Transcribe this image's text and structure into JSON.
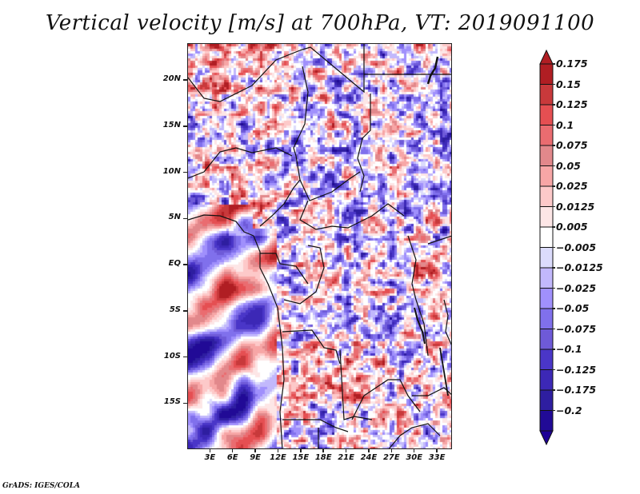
{
  "title": "Vertical velocity [m/s] at 700hPa, VT: 2019091100",
  "footer": "GrADS: IGES/COLA",
  "map": {
    "variable": "Vertical velocity",
    "units": "m/s",
    "level": "700hPa",
    "valid_time": "2019091100",
    "lon_range": [
      0,
      35
    ],
    "lat_range": [
      -20,
      24
    ],
    "lat_ticks": [
      {
        "value": 20,
        "label": "20N"
      },
      {
        "value": 15,
        "label": "15N"
      },
      {
        "value": 10,
        "label": "10N"
      },
      {
        "value": 5,
        "label": "5N"
      },
      {
        "value": 0,
        "label": "EQ"
      },
      {
        "value": -5,
        "label": "5S"
      },
      {
        "value": -10,
        "label": "10S"
      },
      {
        "value": -15,
        "label": "15S"
      }
    ],
    "lon_ticks": [
      {
        "value": 3,
        "label": "3E"
      },
      {
        "value": 6,
        "label": "6E"
      },
      {
        "value": 9,
        "label": "9E"
      },
      {
        "value": 12,
        "label": "12E"
      },
      {
        "value": 15,
        "label": "15E"
      },
      {
        "value": 18,
        "label": "18E"
      },
      {
        "value": 21,
        "label": "21E"
      },
      {
        "value": 24,
        "label": "24E"
      },
      {
        "value": 27,
        "label": "27E"
      },
      {
        "value": 30,
        "label": "30E"
      },
      {
        "value": 33,
        "label": "33E"
      }
    ]
  },
  "colorbar": {
    "labels": [
      "0.175",
      "0.15",
      "0.125",
      "0.1",
      "0.075",
      "0.05",
      "0.025",
      "0.0125",
      "0.005",
      "−0.005",
      "−0.0125",
      "−0.025",
      "−0.05",
      "−0.075",
      "−0.1",
      "−0.125",
      "−0.175",
      "−0.2"
    ],
    "colors": [
      "#b01e23",
      "#c8393b",
      "#e54f52",
      "#ea6c70",
      "#e2888b",
      "#f7a6a6",
      "#fdc9c9",
      "#fde6e6",
      "#ffffff",
      "#dcdcfc",
      "#c2b8fc",
      "#a090fc",
      "#8070ec",
      "#6e5ad8",
      "#4a36c8",
      "#3c28b6",
      "#2e1ea0",
      "#210a96"
    ],
    "top_arrow_color": "#b01e23",
    "bottom_arrow_color": "#1e0096"
  }
}
